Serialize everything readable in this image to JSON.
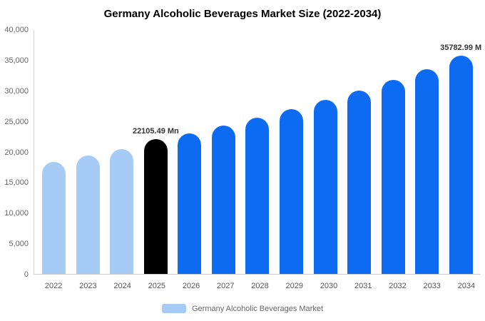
{
  "title": "Germany Alcoholic Beverages Market Size (2022-2034)",
  "legend": {
    "label": "Germany Alcoholic Beverages Market",
    "swatch_color": "#a6ccf5"
  },
  "colors": {
    "historical_bar": "#a6ccf5",
    "base_year_bar": "#000000",
    "forecast_bar": "#0d6bf2",
    "axis_line": "#d0d0d0",
    "tick_text": "#666666",
    "title_text": "#000000"
  },
  "chart_data": {
    "type": "bar",
    "title": "Germany Alcoholic Beverages Market Size (2022-2034)",
    "xlabel": "",
    "ylabel": "",
    "categories": [
      "2022",
      "2023",
      "2024",
      "2025",
      "2026",
      "2027",
      "2028",
      "2029",
      "2030",
      "2031",
      "2032",
      "2033",
      "2034"
    ],
    "values": [
      18400,
      19400,
      20500,
      22105.49,
      23100,
      24300,
      25600,
      27000,
      28500,
      30100,
      31800,
      33600,
      35782.99
    ],
    "bar_colors": [
      "#a6ccf5",
      "#a6ccf5",
      "#a6ccf5",
      "#000000",
      "#0d6bf2",
      "#0d6bf2",
      "#0d6bf2",
      "#0d6bf2",
      "#0d6bf2",
      "#0d6bf2",
      "#0d6bf2",
      "#0d6bf2",
      "#0d6bf2"
    ],
    "ylim": [
      0,
      40000
    ],
    "yticks": [
      0,
      5000,
      10000,
      15000,
      20000,
      25000,
      30000,
      35000,
      40000
    ],
    "ytick_labels": [
      "0",
      "5,000",
      "10,000",
      "15,000",
      "20,000",
      "25,000",
      "30,000",
      "35,000",
      "40,000"
    ],
    "grid": false,
    "legend_position": "bottom",
    "legend_entries": [
      "Germany Alcoholic Beverages Market"
    ],
    "annotations": [
      {
        "category": "2025",
        "text": "22105.49 Mn"
      },
      {
        "category": "2034",
        "text": "35782.99 M"
      }
    ]
  }
}
